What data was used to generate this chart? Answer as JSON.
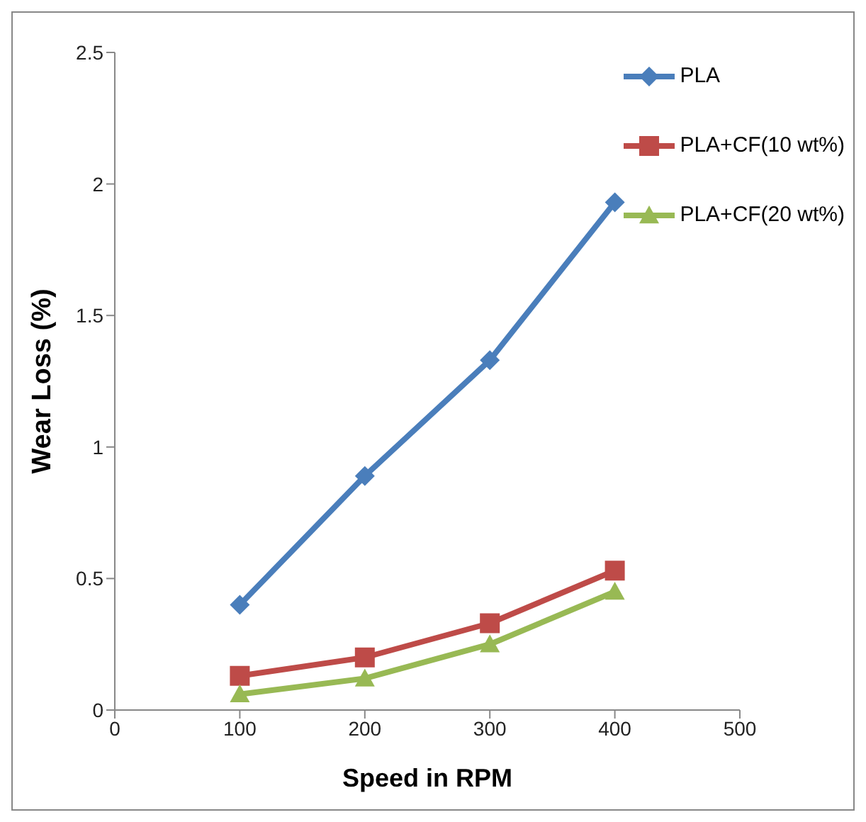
{
  "chart_data": {
    "type": "line",
    "xlabel": "Speed in RPM",
    "ylabel": "Wear Loss (%)",
    "x": [
      100,
      200,
      300,
      400
    ],
    "series": [
      {
        "name": "PLA",
        "color": "#4a7ebb",
        "marker": "diamond",
        "values": [
          0.4,
          0.89,
          1.33,
          1.93
        ]
      },
      {
        "name": "PLA+CF(10 wt%)",
        "color": "#be4b48",
        "marker": "square",
        "values": [
          0.13,
          0.2,
          0.33,
          0.53
        ]
      },
      {
        "name": "PLA+CF(20 wt%)",
        "color": "#98b954",
        "marker": "triangle",
        "values": [
          0.06,
          0.12,
          0.25,
          0.45
        ]
      }
    ],
    "xlim": [
      0,
      500
    ],
    "xticks": [
      0,
      100,
      200,
      300,
      400,
      500
    ],
    "ylim": [
      0,
      2.5
    ],
    "yticks": [
      0,
      0.5,
      1,
      1.5,
      2,
      2.5
    ],
    "grid": false,
    "legend": "top right",
    "line_style": "solid"
  }
}
